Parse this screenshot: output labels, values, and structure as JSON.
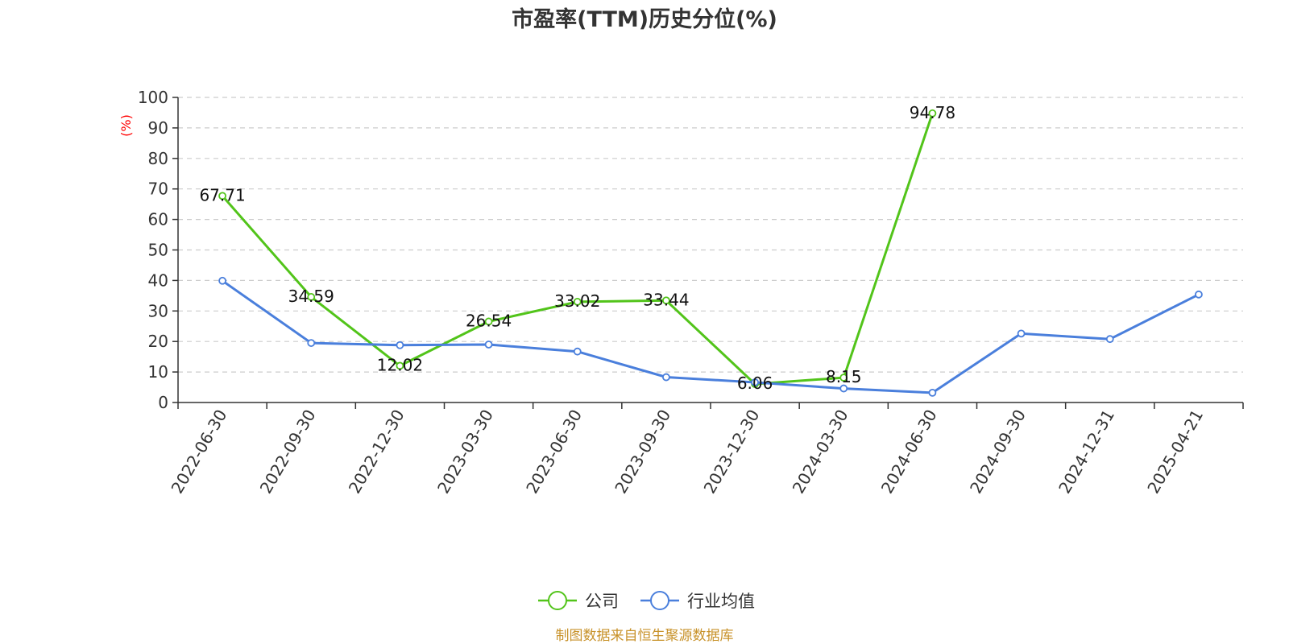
{
  "chart_data": {
    "type": "line",
    "title": "市盈率(TTM)历史分位(%)",
    "xlabel": "",
    "ylabel": "(%)",
    "ylim": [
      0,
      100
    ],
    "yticks": [
      0,
      10,
      20,
      30,
      40,
      50,
      60,
      70,
      80,
      90,
      100
    ],
    "grid": true,
    "legend_position": "bottom",
    "categories": [
      "2022-06-30",
      "2022-09-30",
      "2022-12-30",
      "2023-03-30",
      "2023-06-30",
      "2023-09-30",
      "2023-12-30",
      "2024-03-30",
      "2024-06-30",
      "2024-09-30",
      "2024-12-31",
      "2025-04-21"
    ],
    "series": [
      {
        "name": "公司",
        "color": "#52c41a",
        "values": [
          67.71,
          34.59,
          12.02,
          26.54,
          33.02,
          33.44,
          6.06,
          8.15,
          94.78,
          null,
          null,
          null
        ],
        "labels": [
          "67.71",
          "34.59",
          "12.02",
          "26.54",
          "33.02",
          "33.44",
          "6.06",
          "8.15",
          "94.78",
          "",
          "",
          ""
        ]
      },
      {
        "name": "行业均值",
        "color": "#4a7fdc",
        "values": [
          39.9,
          19.5,
          18.8,
          19.0,
          16.7,
          8.3,
          6.6,
          4.6,
          3.2,
          22.6,
          20.8,
          35.4
        ]
      }
    ],
    "source": "制图数据来自恒生聚源数据库"
  }
}
